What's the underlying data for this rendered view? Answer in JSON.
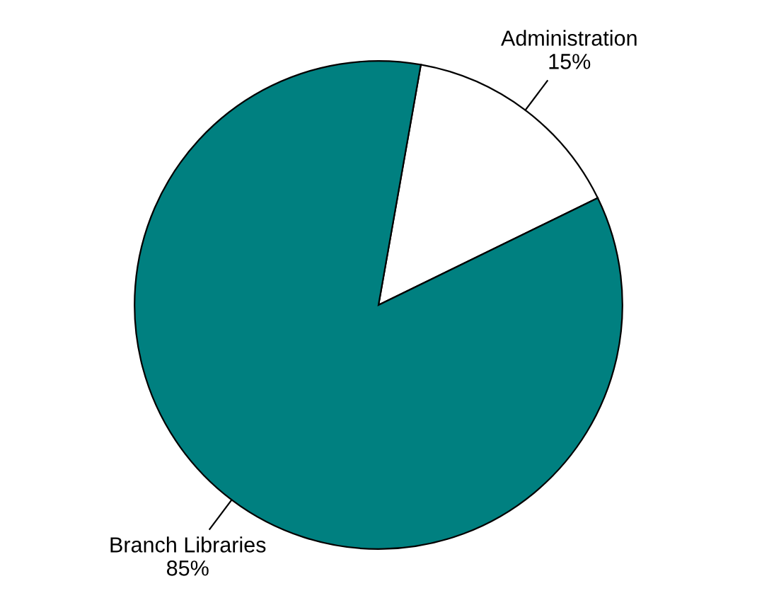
{
  "chart_data": {
    "type": "pie",
    "categories": [
      "Administration",
      "Branch Libraries"
    ],
    "values": [
      15,
      85
    ],
    "value_labels": [
      "15%",
      "85%"
    ],
    "colors": [
      "#ffffff",
      "#008080"
    ]
  }
}
